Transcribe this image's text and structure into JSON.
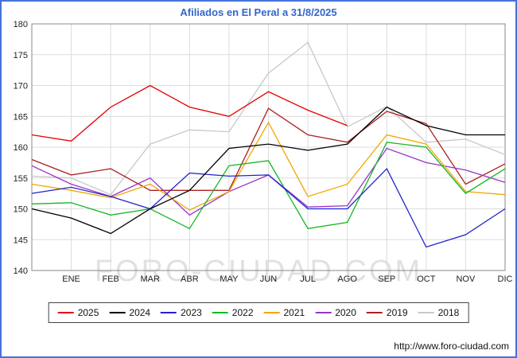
{
  "chart_data": {
    "type": "line",
    "title": "Afiliados en El Peral a 31/8/2025",
    "categories": [
      "",
      "ENE",
      "FEB",
      "MAR",
      "ABR",
      "MAY",
      "JUN",
      "JUL",
      "AGO",
      "SEP",
      "OCT",
      "NOV",
      "DIC"
    ],
    "xlabel": "",
    "ylabel": "",
    "ylim": [
      140,
      180
    ],
    "yticks": [
      140,
      145,
      150,
      155,
      160,
      165,
      170,
      175,
      180
    ],
    "grid": true,
    "legend_position": "bottom",
    "series": [
      {
        "name": "2025",
        "color": "#e60000",
        "values": [
          162,
          161,
          166.5,
          170,
          166.5,
          165,
          169,
          166,
          163.5,
          null,
          null,
          null,
          null
        ]
      },
      {
        "name": "2024",
        "color": "#000000",
        "values": [
          150,
          148.5,
          146,
          150,
          153,
          159.8,
          160.5,
          159.5,
          160.5,
          166.5,
          163.5,
          162,
          162
        ]
      },
      {
        "name": "2023",
        "color": "#2222cc",
        "values": [
          152.5,
          153.5,
          152,
          150,
          155.8,
          155.3,
          155.5,
          150,
          150,
          156.5,
          143.8,
          145.8,
          150
        ]
      },
      {
        "name": "2022",
        "color": "#12b822",
        "values": [
          150.8,
          151,
          149,
          150,
          146.8,
          157,
          157.8,
          146.8,
          147.8,
          160.8,
          160,
          152.5,
          156.5
        ]
      },
      {
        "name": "2021",
        "color": "#f0a800",
        "values": [
          154,
          153,
          151.8,
          154,
          149.8,
          152.8,
          164,
          152,
          154,
          162,
          160.5,
          152.8,
          152.3
        ]
      },
      {
        "name": "2020",
        "color": "#9933cc",
        "values": [
          157,
          154,
          152,
          155,
          149,
          152.8,
          155.5,
          150.3,
          150.5,
          159.8,
          157.5,
          156.3,
          154.3
        ]
      },
      {
        "name": "2019",
        "color": "#aa2222",
        "values": [
          158,
          155.5,
          156.5,
          153,
          153,
          153,
          166.3,
          162,
          160.8,
          165.8,
          163.8,
          154,
          157.3
        ]
      },
      {
        "name": "2018",
        "color": "#c8c8c8",
        "values": [
          155.3,
          155,
          152.3,
          160.5,
          162.8,
          162.5,
          172,
          177,
          163.3,
          166.6,
          160.8,
          161.3,
          158.8
        ]
      }
    ]
  },
  "watermark": "FORO-CIUDAD.COM",
  "footer": {
    "url": "http://www.foro-ciudad.com"
  },
  "colors": {
    "frame": "#4472d8",
    "title": "#3366cc",
    "grid": "#dcdcdc",
    "axis_border": "#888888",
    "tick_text": "#222222"
  }
}
